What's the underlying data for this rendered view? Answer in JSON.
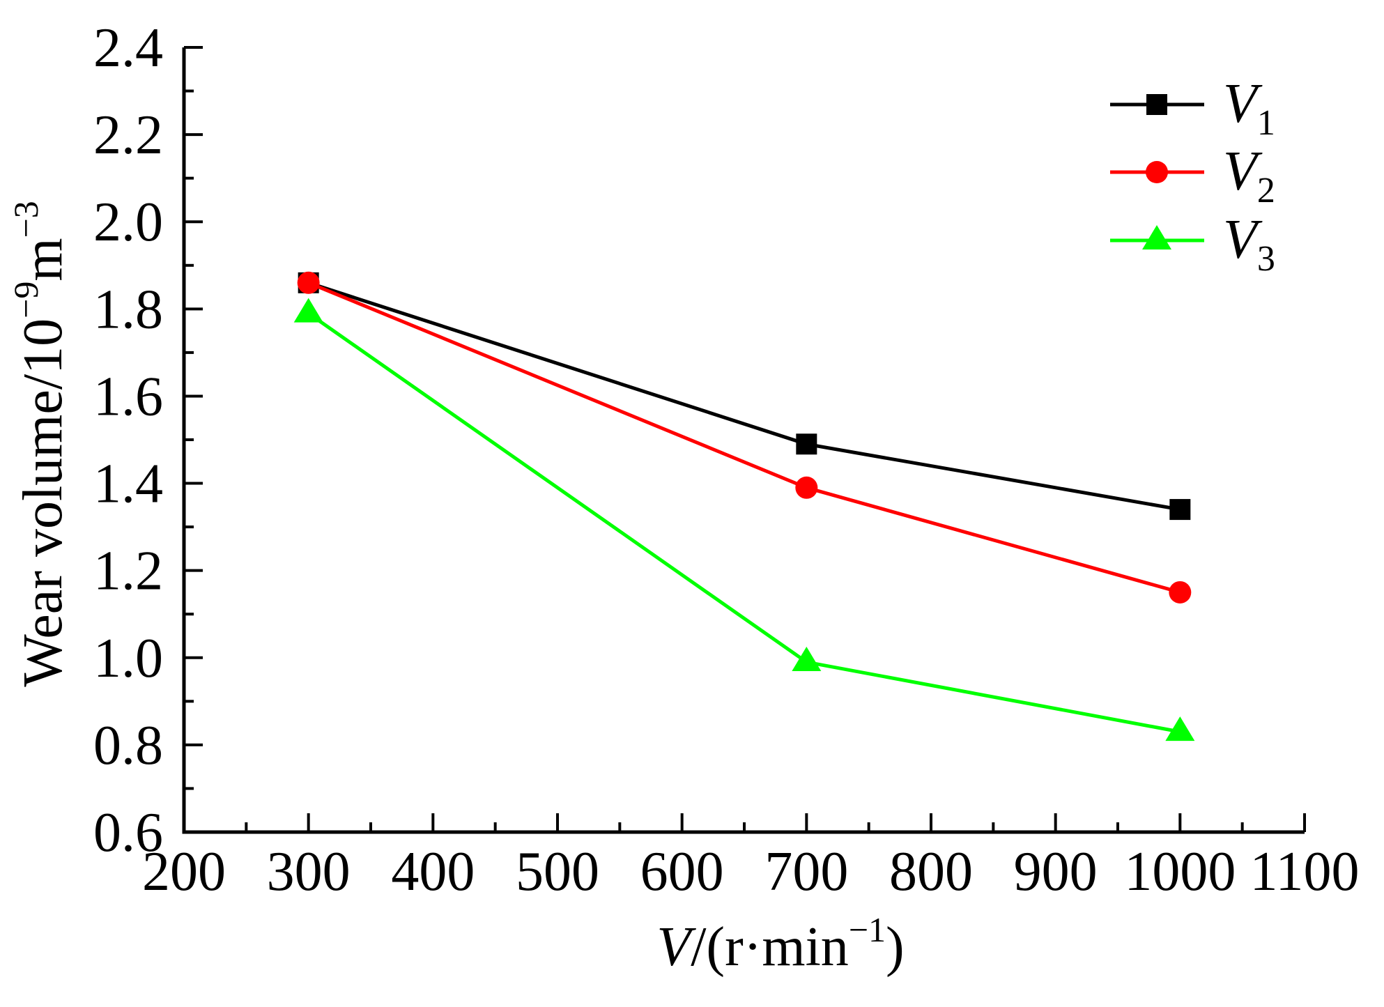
{
  "chart_data": {
    "type": "line",
    "title": "",
    "xlabel": "V/(r·min⁻¹)",
    "xlabel_parts": {
      "var": "V",
      "unit": "/(r·min",
      "sup": "−1",
      "close": ")"
    },
    "ylabel": "Wear volume/10⁻⁹m⁻³",
    "ylabel_parts": {
      "text": "Wear volume/10",
      "sup1": "−9",
      "mid": "m",
      "sup2": "−3"
    },
    "xlim": [
      200,
      1100
    ],
    "ylim": [
      0.6,
      2.4
    ],
    "xticks": [
      200,
      300,
      400,
      500,
      600,
      700,
      800,
      900,
      1000,
      1100
    ],
    "xtick_labels": [
      "200",
      "300",
      "400",
      "500",
      "600",
      "700",
      "800",
      "900",
      "1000",
      "1100"
    ],
    "xminor_step": 50,
    "yticks": [
      0.6,
      0.8,
      1.0,
      1.2,
      1.4,
      1.6,
      1.8,
      2.0,
      2.2,
      2.4
    ],
    "ytick_labels": [
      "0.6",
      "0.8",
      "1.0",
      "1.2",
      "1.4",
      "1.6",
      "1.8",
      "2.0",
      "2.2",
      "2.4"
    ],
    "yminor_step": 0.1,
    "grid": false,
    "legend_position": "top-right",
    "x": [
      300,
      700,
      1000
    ],
    "series": [
      {
        "name": "V1",
        "label_main": "V",
        "label_sub": "1",
        "color": "#000000",
        "marker": "square",
        "values": [
          1.86,
          1.49,
          1.34
        ]
      },
      {
        "name": "V2",
        "label_main": "V",
        "label_sub": "2",
        "color": "#ff0000",
        "marker": "circle",
        "values": [
          1.86,
          1.39,
          1.15
        ]
      },
      {
        "name": "V3",
        "label_main": "V",
        "label_sub": "3",
        "color": "#00ff00",
        "marker": "triangle",
        "values": [
          1.79,
          0.99,
          0.83
        ]
      }
    ]
  }
}
